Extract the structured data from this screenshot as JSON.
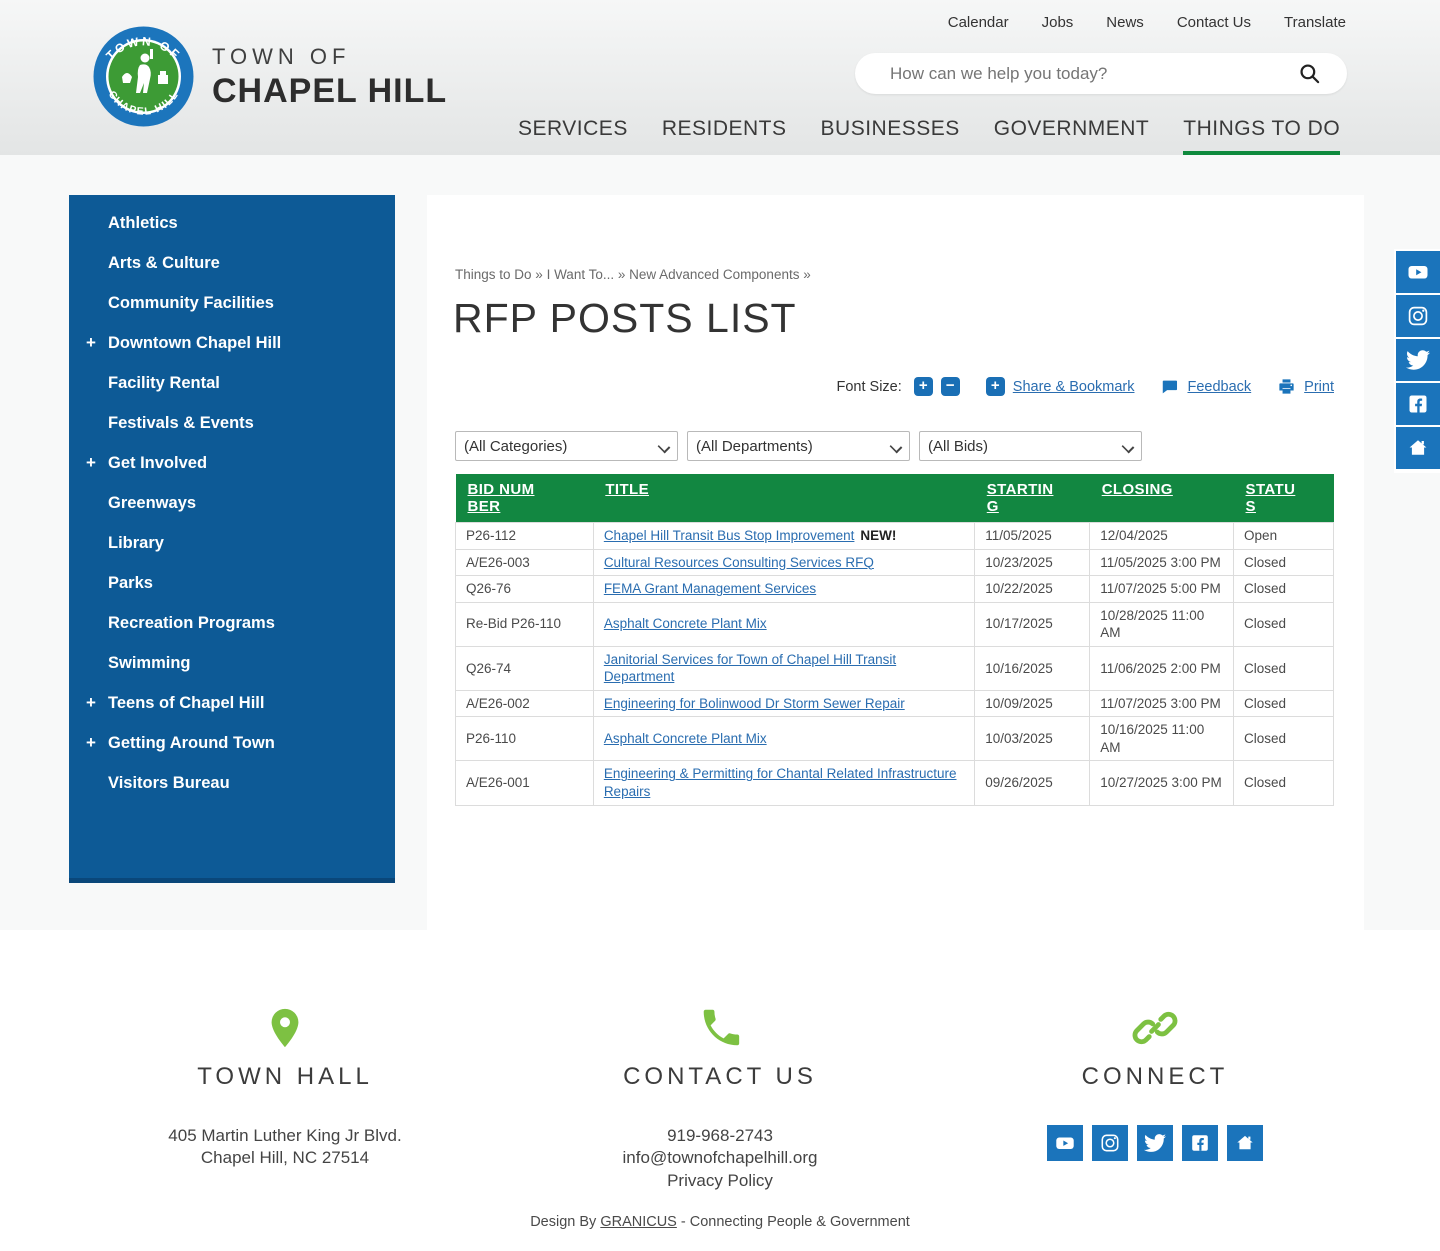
{
  "utility_nav": {
    "items": [
      "Calendar",
      "Jobs",
      "News",
      "Contact Us",
      "Translate"
    ]
  },
  "logo": {
    "seal_top": "TOWN OF",
    "seal_bottom": "CHAPEL HILL",
    "line1": "TOWN OF",
    "line2": "CHAPEL HILL"
  },
  "search": {
    "placeholder": "How can we help you today?",
    "icon": "search-icon"
  },
  "main_nav": {
    "items": [
      "SERVICES",
      "RESIDENTS",
      "BUSINESSES",
      "GOVERNMENT",
      "THINGS TO DO"
    ],
    "active": "THINGS TO DO"
  },
  "sidebar": {
    "items": [
      {
        "label": "Athletics",
        "expandable": false
      },
      {
        "label": "Arts & Culture",
        "expandable": false
      },
      {
        "label": "Community Facilities",
        "expandable": false
      },
      {
        "label": "Downtown Chapel Hill",
        "expandable": true
      },
      {
        "label": "Facility Rental",
        "expandable": false
      },
      {
        "label": "Festivals & Events",
        "expandable": false
      },
      {
        "label": "Get Involved",
        "expandable": true
      },
      {
        "label": "Greenways",
        "expandable": false
      },
      {
        "label": "Library",
        "expandable": false
      },
      {
        "label": "Parks",
        "expandable": false
      },
      {
        "label": "Recreation Programs",
        "expandable": false
      },
      {
        "label": "Swimming",
        "expandable": false
      },
      {
        "label": "Teens of Chapel Hill",
        "expandable": true
      },
      {
        "label": "Getting Around Town",
        "expandable": true
      },
      {
        "label": "Visitors Bureau",
        "expandable": false
      }
    ]
  },
  "breadcrumb": {
    "parts": [
      "Things to Do",
      "I Want To...",
      "New Advanced Components"
    ],
    "separator": "»"
  },
  "page": {
    "title": "RFP POSTS LIST"
  },
  "toolbar": {
    "font_size_label": "Font Size:",
    "increase_icon": "font-increase-icon",
    "decrease_icon": "font-decrease-icon",
    "share_icon": "share-plus-icon",
    "share_label": "Share & Bookmark",
    "feedback_icon": "feedback-bubble-icon",
    "feedback_label": "Feedback",
    "print_icon": "print-icon",
    "print_label": "Print"
  },
  "filters": {
    "categories": "(All Categories)",
    "departments": "(All Departments)",
    "bids": "(All Bids)"
  },
  "table": {
    "headers": [
      "BID NUMBER",
      "TITLE",
      "STARTING",
      "CLOSING",
      "STATUS"
    ],
    "new_label": "NEW!",
    "rows": [
      {
        "bid": "P26-112",
        "title": "Chapel Hill Transit Bus Stop Improvement",
        "new": true,
        "starting": "11/05/2025",
        "closing": "12/04/2025",
        "status": "Open"
      },
      {
        "bid": "A/E26-003",
        "title": "Cultural Resources Consulting Services RFQ",
        "new": false,
        "starting": "10/23/2025",
        "closing": "11/05/2025 3:00 PM",
        "status": "Closed"
      },
      {
        "bid": "Q26-76",
        "title": "FEMA Grant Management Services",
        "new": false,
        "starting": "10/22/2025",
        "closing": "11/07/2025 5:00 PM",
        "status": "Closed"
      },
      {
        "bid": "Re-Bid P26-110",
        "title": "Asphalt Concrete Plant Mix",
        "new": false,
        "starting": "10/17/2025",
        "closing": "10/28/2025 11:00 AM",
        "status": "Closed"
      },
      {
        "bid": "Q26-74",
        "title": "Janitorial Services for Town of Chapel Hill Transit Department",
        "new": false,
        "starting": "10/16/2025",
        "closing": "11/06/2025 2:00 PM",
        "status": "Closed"
      },
      {
        "bid": "A/E26-002",
        "title": "Engineering for Bolinwood Dr Storm Sewer Repair",
        "new": false,
        "starting": "10/09/2025",
        "closing": "11/07/2025 3:00 PM",
        "status": "Closed"
      },
      {
        "bid": "P26-110",
        "title": "Asphalt Concrete Plant Mix",
        "new": false,
        "starting": "10/03/2025",
        "closing": "10/16/2025 11:00 AM",
        "status": "Closed"
      },
      {
        "bid": "A/E26-001",
        "title": "Engineering & Permitting for Chantal Related Infrastructure Repairs",
        "new": false,
        "starting": "09/26/2025",
        "closing": "10/27/2025 3:00 PM",
        "status": "Closed"
      }
    ]
  },
  "social": {
    "icons": [
      "youtube",
      "instagram",
      "twitter",
      "facebook",
      "nextdoor"
    ]
  },
  "footer": {
    "town_hall": {
      "icon": "map-pin-icon",
      "heading": "TOWN HALL",
      "address1": "405 Martin Luther King Jr Blvd.",
      "address2": "Chapel Hill, NC 27514"
    },
    "contact": {
      "icon": "phone-icon",
      "heading": "CONTACT US",
      "phone": "919-968-2743",
      "email": "info@townofchapelhill.org",
      "privacy": "Privacy Policy"
    },
    "connect": {
      "icon": "link-chain-icon",
      "heading": "CONNECT"
    },
    "design_prefix": "Design By ",
    "design_link": "GRANICUS",
    "design_suffix": " - Connecting People & Government"
  },
  "colors": {
    "accent_green": "#128741",
    "nav_blue": "#0d5a96",
    "link_blue": "#2a6db0",
    "social_blue": "#1b74bb",
    "footer_green": "#7dc142"
  }
}
